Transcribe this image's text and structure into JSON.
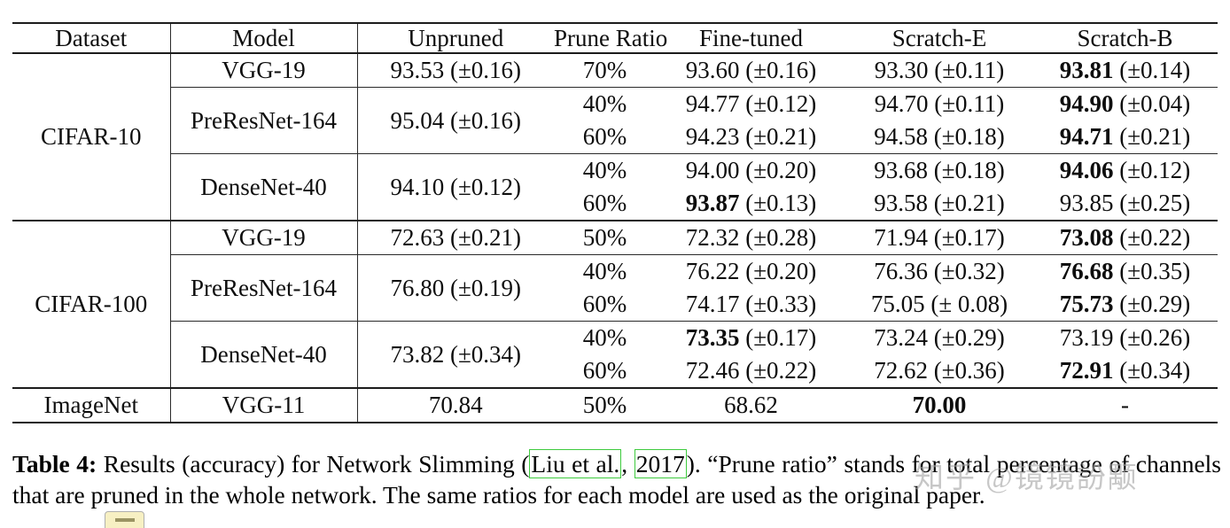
{
  "table": {
    "headers": [
      "Dataset",
      "Model",
      "Unpruned",
      "Prune Ratio",
      "Fine-tuned",
      "Scratch-E",
      "Scratch-B"
    ],
    "sections": [
      {
        "dataset": "CIFAR-10",
        "groups": [
          {
            "model": "VGG-19",
            "unpruned": "93.53 (±0.16)",
            "rows": [
              {
                "ratio": "70%",
                "cells": [
                  {
                    "v": "93.60",
                    "pm": "(±0.16)",
                    "bold": false
                  },
                  {
                    "v": "93.30",
                    "pm": "(±0.11)",
                    "bold": false
                  },
                  {
                    "v": "93.81",
                    "pm": "(±0.14)",
                    "bold": true
                  }
                ]
              }
            ]
          },
          {
            "model": "PreResNet-164",
            "unpruned": "95.04 (±0.16)",
            "rows": [
              {
                "ratio": "40%",
                "cells": [
                  {
                    "v": "94.77",
                    "pm": "(±0.12)",
                    "bold": false
                  },
                  {
                    "v": "94.70",
                    "pm": "(±0.11)",
                    "bold": false
                  },
                  {
                    "v": "94.90",
                    "pm": "(±0.04)",
                    "bold": true
                  }
                ]
              },
              {
                "ratio": "60%",
                "cells": [
                  {
                    "v": "94.23",
                    "pm": "(±0.21)",
                    "bold": false
                  },
                  {
                    "v": "94.58",
                    "pm": "(±0.18)",
                    "bold": false
                  },
                  {
                    "v": "94.71",
                    "pm": "(±0.21)",
                    "bold": true
                  }
                ]
              }
            ]
          },
          {
            "model": "DenseNet-40",
            "unpruned": "94.10 (±0.12)",
            "rows": [
              {
                "ratio": "40%",
                "cells": [
                  {
                    "v": "94.00",
                    "pm": "(±0.20)",
                    "bold": false
                  },
                  {
                    "v": "93.68",
                    "pm": "(±0.18)",
                    "bold": false
                  },
                  {
                    "v": "94.06",
                    "pm": "(±0.12)",
                    "bold": true
                  }
                ]
              },
              {
                "ratio": "60%",
                "cells": [
                  {
                    "v": "93.87",
                    "pm": "(±0.13)",
                    "bold": true
                  },
                  {
                    "v": "93.58",
                    "pm": "(±0.21)",
                    "bold": false
                  },
                  {
                    "v": "93.85",
                    "pm": "(±0.25)",
                    "bold": false
                  }
                ]
              }
            ]
          }
        ]
      },
      {
        "dataset": "CIFAR-100",
        "groups": [
          {
            "model": "VGG-19",
            "unpruned": "72.63 (±0.21)",
            "rows": [
              {
                "ratio": "50%",
                "cells": [
                  {
                    "v": "72.32",
                    "pm": "(±0.28)",
                    "bold": false
                  },
                  {
                    "v": "71.94",
                    "pm": "(±0.17)",
                    "bold": false
                  },
                  {
                    "v": "73.08",
                    "pm": "(±0.22)",
                    "bold": true
                  }
                ]
              }
            ]
          },
          {
            "model": "PreResNet-164",
            "unpruned": "76.80 (±0.19)",
            "rows": [
              {
                "ratio": "40%",
                "cells": [
                  {
                    "v": "76.22",
                    "pm": "(±0.20)",
                    "bold": false
                  },
                  {
                    "v": "76.36",
                    "pm": "(±0.32)",
                    "bold": false
                  },
                  {
                    "v": "76.68",
                    "pm": "(±0.35)",
                    "bold": true
                  }
                ]
              },
              {
                "ratio": "60%",
                "cells": [
                  {
                    "v": "74.17",
                    "pm": "(±0.33)",
                    "bold": false
                  },
                  {
                    "v": "75.05",
                    "pm": "(± 0.08)",
                    "bold": false
                  },
                  {
                    "v": "75.73",
                    "pm": "(±0.29)",
                    "bold": true
                  }
                ]
              }
            ]
          },
          {
            "model": "DenseNet-40",
            "unpruned": "73.82 (±0.34)",
            "rows": [
              {
                "ratio": "40%",
                "cells": [
                  {
                    "v": "73.35",
                    "pm": "(±0.17)",
                    "bold": true
                  },
                  {
                    "v": "73.24",
                    "pm": "(±0.29)",
                    "bold": false
                  },
                  {
                    "v": "73.19",
                    "pm": "(±0.26)",
                    "bold": false
                  }
                ]
              },
              {
                "ratio": "60%",
                "cells": [
                  {
                    "v": "72.46",
                    "pm": "(±0.22)",
                    "bold": false
                  },
                  {
                    "v": "72.62",
                    "pm": "(±0.36)",
                    "bold": false
                  },
                  {
                    "v": "72.91",
                    "pm": "(±0.34)",
                    "bold": true
                  }
                ]
              }
            ]
          }
        ]
      },
      {
        "dataset": "ImageNet",
        "groups": [
          {
            "model": "VGG-11",
            "unpruned": "70.84",
            "rows": [
              {
                "ratio": "50%",
                "cells": [
                  {
                    "v": "68.62",
                    "pm": "",
                    "bold": false
                  },
                  {
                    "v": "70.00",
                    "pm": "",
                    "bold": true
                  },
                  {
                    "v": "-",
                    "pm": "",
                    "bold": false
                  }
                ]
              }
            ]
          }
        ]
      }
    ]
  },
  "caption": {
    "label": "Table 4:",
    "text1": " Results (accuracy) for Network Slimming (",
    "cite1": "Liu et al.",
    "sep": ", ",
    "cite2": "2017",
    "text2": "). “Prune ratio” stands for total percentage of channels that are pruned in the whole network. The same ratios for each model are used as the original paper."
  },
  "watermark": {
    "text": "知乎 @镜镜訜颙"
  }
}
